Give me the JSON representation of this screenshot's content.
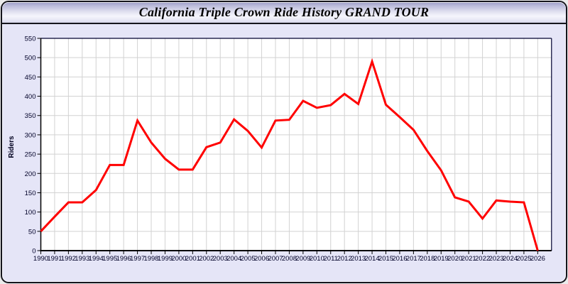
{
  "window": {
    "title": "California Triple Crown Ride History GRAND TOUR"
  },
  "colors": {
    "line": "#ff0000",
    "window_background": "#e5e5f7",
    "plot_background": "#ffffff",
    "gridline": "#d2d2d2",
    "axis": "#000000",
    "plot_border": "#000030",
    "tick_label": "#000028",
    "titlebar_gradient_top": "#9b9bc6",
    "titlebar_gradient_bottom": "#d6d6ea"
  },
  "chart_data": {
    "type": "line",
    "title": "California Triple Crown Ride History GRAND TOUR",
    "xlabel": "",
    "ylabel": "Riders",
    "ylim": [
      0,
      550
    ],
    "ytick_step": 50,
    "yticks": [
      0,
      50,
      100,
      150,
      200,
      250,
      300,
      350,
      400,
      450,
      500,
      550
    ],
    "grid": true,
    "legend": false,
    "categories": [
      "1990",
      "1991",
      "1992",
      "1993",
      "1994",
      "1995",
      "1996",
      "1997",
      "1998",
      "1999",
      "2000",
      "2001",
      "2002",
      "2003",
      "2004",
      "2005",
      "2006",
      "2007",
      "2008",
      "2009",
      "2010",
      "2011",
      "2012",
      "2013",
      "2014",
      "2015",
      "2016",
      "2017",
      "2018",
      "2019",
      "2020",
      "2021",
      "2022",
      "2023",
      "2024",
      "2025",
      "2026"
    ],
    "series": [
      {
        "name": "Riders",
        "color": "#ff0000",
        "values": [
          50,
          88,
          125,
          125,
          157,
          222,
          222,
          337,
          280,
          238,
          210,
          210,
          268,
          280,
          340,
          310,
          267,
          337,
          339,
          388,
          370,
          377,
          406,
          380,
          490,
          378,
          346,
          313,
          258,
          208,
          138,
          127,
          83,
          130,
          127,
          125,
          0
        ]
      }
    ]
  }
}
